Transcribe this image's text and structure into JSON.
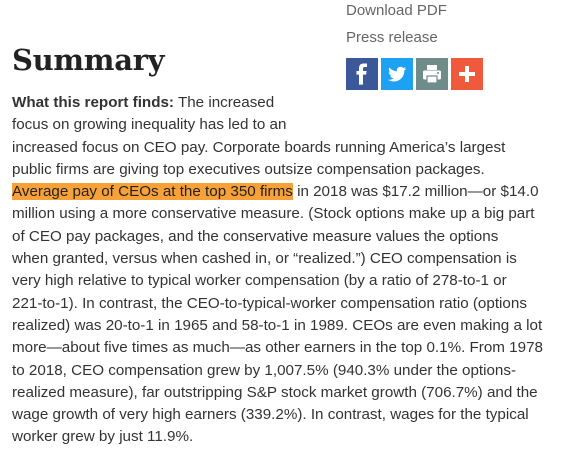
{
  "sidebar": {
    "download_pdf": "Download PDF",
    "press_release": "Press release",
    "share": [
      {
        "icon": "facebook-icon",
        "color": "#3b5998"
      },
      {
        "icon": "twitter-icon",
        "color": "#1da1f2"
      },
      {
        "icon": "print-icon",
        "color": "#6f8c8a"
      },
      {
        "icon": "plus-icon",
        "color": "#f05a3c"
      }
    ]
  },
  "summary": {
    "title": "Summary",
    "lead_label": "What this report finds:",
    "highlight_color": "#f8a139",
    "lines": [
      " The increased",
      "focus on growing inequality has led to an",
      "increased focus on CEO pay. Corporate boards running America’s largest",
      "public firms are giving top executives outsize compensation packages.",
      "Average pay of CEOs at the top 350 firms",
      " in 2018 was $17.2 million—or $14.0",
      "million using a more conservative measure. (Stock options make up a big part",
      "of CEO pay packages, and the conservative measure values the options",
      "when granted, versus when cashed in, or “realized.”) CEO compensation is",
      "very high relative to typical worker compensation (by a ratio of 278-to-1 or",
      "221-to-1). In contrast, the CEO-to-typical-worker compensation ratio (options",
      "realized) was 20-to-1 in 1965 and 58-to-1 in 1989. CEOs are even making a lot",
      "more—about five times as much—as other earners in the top 0.1%. From 1978",
      "to 2018, CEO compensation grew by 1,007.5% (940.3% under the options-",
      "realized measure), far outstripping S&P stock market growth (706.7%) and the",
      "wage growth of very high earners (339.2%). In contrast, wages for the typical",
      "worker grew by just 11.9%."
    ]
  }
}
